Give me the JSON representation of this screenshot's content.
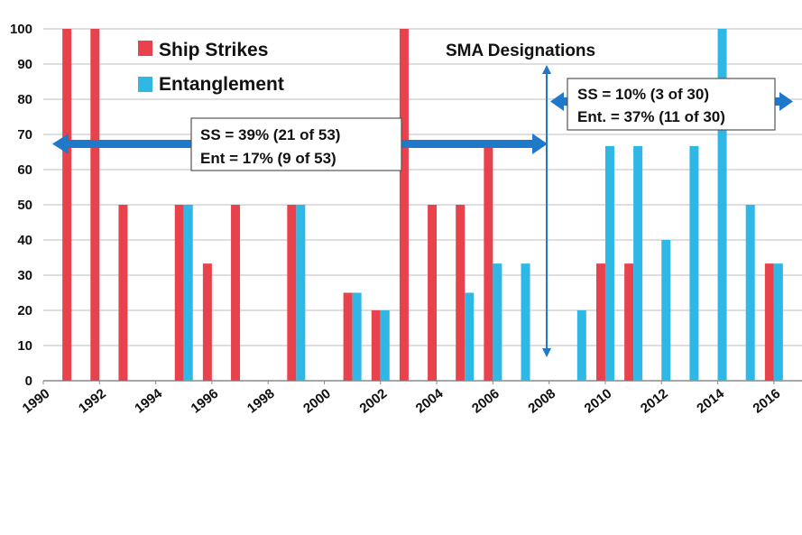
{
  "chart_data": {
    "type": "bar",
    "title": "SMA Designations",
    "xlim": [
      1990,
      2017
    ],
    "ylim": [
      0,
      100
    ],
    "yticks": [
      0,
      10,
      20,
      30,
      40,
      50,
      60,
      70,
      80,
      90,
      100
    ],
    "xticks": [
      "1990",
      "1992",
      "1994",
      "1996",
      "1998",
      "2000",
      "2002",
      "2004",
      "2006",
      "2008",
      "2010",
      "2012",
      "2014",
      "2016"
    ],
    "grid": true,
    "legend_position": "top-left",
    "series": [
      {
        "name": "Ship Strikes",
        "color": "#e8434d",
        "x": [
          1991,
          1992,
          1993,
          1995,
          1996,
          1997,
          1999,
          2001,
          2002,
          2003,
          2004,
          2005,
          2006,
          2010,
          2011,
          2016
        ],
        "values": [
          100,
          100,
          50,
          50,
          33.3,
          50,
          50,
          25,
          20,
          100,
          50,
          50,
          66.7,
          33.3,
          33.3,
          33.3
        ]
      },
      {
        "name": "Entanglement",
        "color": "#2fb8e6",
        "x": [
          1995,
          1999,
          2001,
          2002,
          2005,
          2006,
          2007,
          2009,
          2010,
          2011,
          2012,
          2013,
          2014,
          2015,
          2016
        ],
        "values": [
          50,
          50,
          25,
          20,
          25,
          33.3,
          33.3,
          20,
          66.7,
          66.7,
          40,
          66.7,
          100,
          50,
          33.3
        ]
      }
    ],
    "annotations": {
      "period1_line1": "SS = 39%  (21 of 53)",
      "period1_line2": "Ent = 17%  (9 of 53)",
      "period2_line1": "SS = 10%  (3 of 30)",
      "period2_line2": "Ent. = 37%  (11 of 30)",
      "arrow_color": "#1f78c8"
    }
  }
}
